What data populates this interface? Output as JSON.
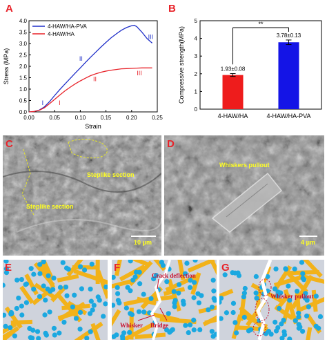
{
  "panels": {
    "A": {
      "label": "A",
      "chart_data": {
        "type": "line",
        "xlabel": "Strain",
        "ylabel": "Stress (MPa)",
        "xlim": [
          0.0,
          0.25
        ],
        "ylim": [
          0.0,
          4.0
        ],
        "xticks": [
          "0.00",
          "0.05",
          "0.10",
          "0.15",
          "0.20",
          "0.25"
        ],
        "yticks": [
          "0.0",
          "0.5",
          "1.0",
          "1.5",
          "2.0",
          "2.5",
          "3.0",
          "3.5",
          "4.0"
        ],
        "legend_placement": "top-left",
        "series": [
          {
            "name": "4-HAW/HA-PVA",
            "color": "#1f2fc8",
            "x": [
              0.0,
              0.01,
              0.02,
              0.03,
              0.04,
              0.05,
              0.06,
              0.07,
              0.08,
              0.09,
              0.1,
              0.11,
              0.12,
              0.13,
              0.14,
              0.15,
              0.16,
              0.17,
              0.18,
              0.19,
              0.2,
              0.205,
              0.21,
              0.22,
              0.23,
              0.24
            ],
            "y": [
              0.0,
              0.02,
              0.08,
              0.22,
              0.45,
              0.72,
              0.98,
              1.22,
              1.46,
              1.7,
              1.93,
              2.17,
              2.4,
              2.62,
              2.84,
              3.05,
              3.25,
              3.42,
              3.58,
              3.7,
              3.78,
              3.8,
              3.74,
              3.5,
              3.22,
              3.02
            ]
          },
          {
            "name": "4-HAW/HA",
            "color": "#e8232a",
            "x": [
              0.0,
              0.01,
              0.02,
              0.03,
              0.04,
              0.05,
              0.06,
              0.07,
              0.08,
              0.09,
              0.1,
              0.11,
              0.12,
              0.13,
              0.14,
              0.15,
              0.16,
              0.17,
              0.18,
              0.19,
              0.2,
              0.21,
              0.22,
              0.23,
              0.24
            ],
            "y": [
              0.0,
              0.02,
              0.07,
              0.18,
              0.36,
              0.55,
              0.74,
              0.92,
              1.08,
              1.23,
              1.36,
              1.48,
              1.59,
              1.67,
              1.74,
              1.79,
              1.83,
              1.86,
              1.89,
              1.9,
              1.91,
              1.92,
              1.93,
              1.93,
              1.93
            ]
          }
        ],
        "annotations": [
          {
            "text": "I",
            "x": 0.025,
            "y": 0.3,
            "color": "#1f2fc8"
          },
          {
            "text": "I",
            "x": 0.058,
            "y": 0.3,
            "color": "#e8232a"
          },
          {
            "text": "II",
            "x": 0.098,
            "y": 2.25,
            "color": "#1f2fc8"
          },
          {
            "text": "II",
            "x": 0.125,
            "y": 1.35,
            "color": "#e8232a"
          },
          {
            "text": "III",
            "x": 0.232,
            "y": 3.2,
            "color": "#1f2fc8"
          },
          {
            "text": "III",
            "x": 0.21,
            "y": 1.6,
            "color": "#e8232a"
          }
        ]
      }
    },
    "B": {
      "label": "B",
      "chart_data": {
        "type": "bar",
        "ylabel": "Compressive strength(MPa)",
        "ylim": [
          0,
          5
        ],
        "yticks": [
          "0",
          "1",
          "2",
          "3",
          "4",
          "5"
        ],
        "categories": [
          "4-HAW/HA",
          "4-HAW/HA-PVA"
        ],
        "values": [
          1.93,
          3.78
        ],
        "errors": [
          0.08,
          0.13
        ],
        "colors": [
          "#ee1c1c",
          "#1414e6"
        ],
        "data_labels": [
          "1.93±0.08",
          "3.78±0.13"
        ],
        "significance": "**"
      }
    },
    "C": {
      "label": "C",
      "annotations": [
        "Steplike section",
        "Steplike section"
      ],
      "scale_bar": "10 μm"
    },
    "D": {
      "label": "D",
      "annotations": [
        "Whiskers pullout"
      ],
      "scale_bar": "4 μm"
    },
    "E": {
      "label": "E"
    },
    "F": {
      "label": "F",
      "annotations": [
        "Crack deflection",
        "Whisker",
        "Bridge"
      ]
    },
    "G": {
      "label": "G",
      "annotations": [
        "Whisker pullout"
      ]
    }
  }
}
